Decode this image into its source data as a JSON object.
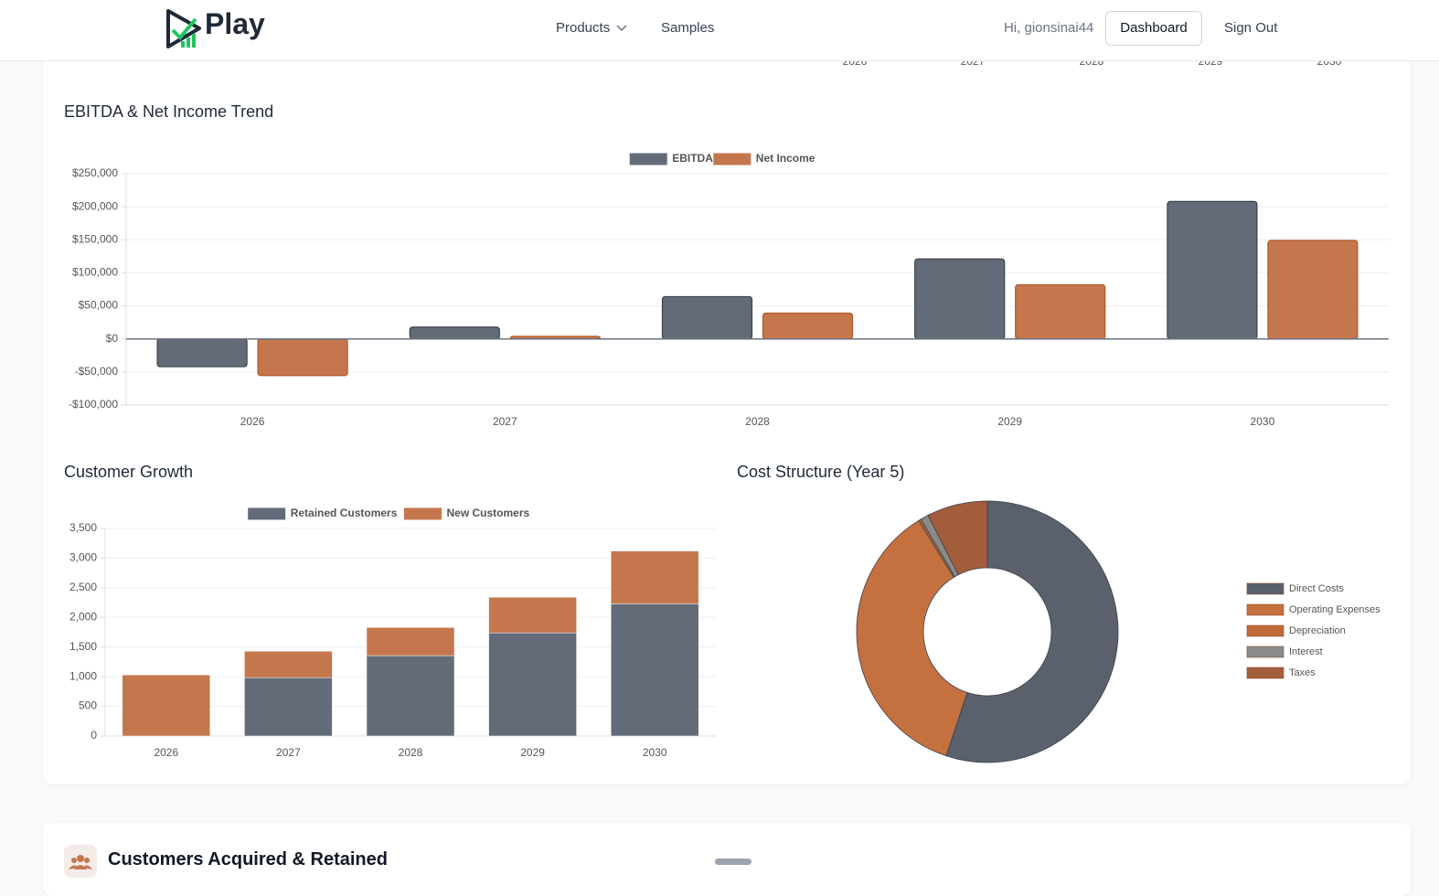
{
  "header": {
    "logo": "Play",
    "nav": [
      "Products",
      "Samples"
    ],
    "greeting": "Hi, gionsinai44",
    "buttons": [
      "Dashboard",
      "Sign Out"
    ]
  },
  "previous_chart_x_labels": [
    "2026",
    "2027",
    "2028",
    "2029",
    "2030"
  ],
  "chart_data": [
    {
      "type": "bar",
      "title": "EBITDA & Net Income Trend",
      "categories": [
        "2026",
        "2027",
        "2028",
        "2029",
        "2030"
      ],
      "series": [
        {
          "name": "EBITDA",
          "color": "#646b78",
          "values": [
            -42000,
            18000,
            64000,
            121000,
            208000
          ]
        },
        {
          "name": "Net Income",
          "color": "#c4774d",
          "values": [
            -55500,
            4000,
            39000,
            82000,
            149000
          ]
        }
      ],
      "ylim": [
        -100000,
        250000
      ],
      "yticks": [
        {
          "value": -100000,
          "label": "-$100,000"
        },
        {
          "value": -50000,
          "label": "-$50,000"
        },
        {
          "value": 0,
          "label": "$0"
        },
        {
          "value": 50000,
          "label": "$50,000"
        },
        {
          "value": 100000,
          "label": "$100,000"
        },
        {
          "value": 150000,
          "label": "$150,000"
        },
        {
          "value": 200000,
          "label": "$200,000"
        },
        {
          "value": 250000,
          "label": "$250,000"
        }
      ],
      "grid": true,
      "legend": "top"
    },
    {
      "type": "stacked_bar",
      "title": "Customer Growth",
      "categories": [
        "2026",
        "2027",
        "2028",
        "2029",
        "2030"
      ],
      "series": [
        {
          "name": "Retained Customers",
          "color": "#646b78",
          "values": [
            0,
            985,
            1355,
            1740,
            2230
          ]
        },
        {
          "name": "New Customers",
          "color": "#c4774d",
          "values": [
            1030,
            445,
            475,
            600,
            890
          ]
        }
      ],
      "ylim": [
        0,
        3500
      ],
      "yticks": [
        0,
        500,
        {
          "value": 1000,
          "label": "1,000"
        },
        {
          "value": 1500,
          "label": "1,500"
        },
        {
          "value": 2000,
          "label": "2,000"
        },
        {
          "value": 2500,
          "label": "2,500"
        },
        {
          "value": 3000,
          "label": "3,000"
        },
        {
          "value": 3500,
          "label": "3,500"
        }
      ],
      "grid": true,
      "legend": "top"
    },
    {
      "type": "doughnut",
      "title": "Cost Structure (Year 5)",
      "categories": [
        "Direct Costs",
        "Operating Expenses",
        "Depreciation",
        "Interest",
        "Taxes"
      ],
      "values": [
        55.1,
        36.1,
        0.3,
        1.0,
        7.5
      ],
      "colors": [
        "#5a606c",
        "#c4703f",
        "#c0693a",
        "#8a8a8a",
        "#a35d3c"
      ],
      "legend": "right"
    }
  ],
  "section": {
    "title": "Customers Acquired & Retained"
  }
}
